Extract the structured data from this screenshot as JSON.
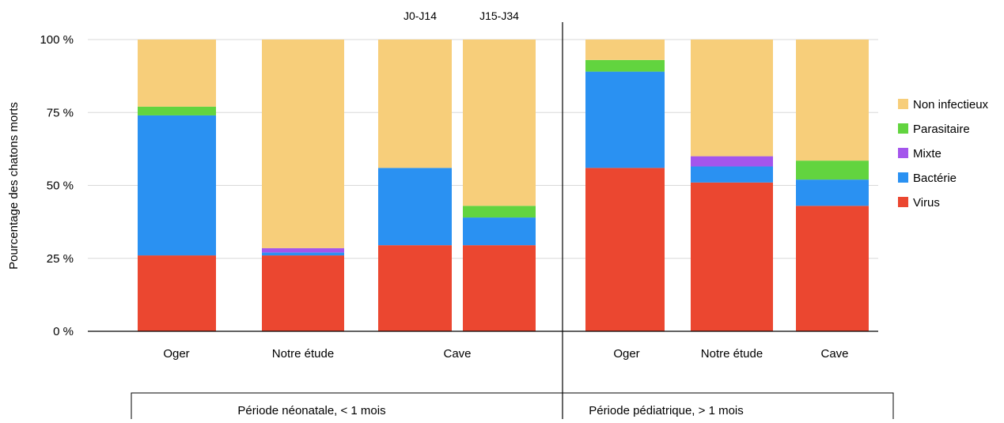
{
  "chart_data": {
    "type": "bar",
    "stacked": true,
    "ylabel": "Pourcentage des chatons morts",
    "ylim": [
      0,
      100
    ],
    "yticks": [
      {
        "value": 0,
        "label": "0 %"
      },
      {
        "value": 25,
        "label": "25 %"
      },
      {
        "value": 50,
        "label": "50 %"
      },
      {
        "value": 75,
        "label": "75 %"
      },
      {
        "value": 100,
        "label": "100 %"
      }
    ],
    "grid": true,
    "legend_position": "right",
    "groups": [
      {
        "label": "Période néonatale, < 1 mois"
      },
      {
        "label": "Période pédiatrique, > 1 mois"
      }
    ],
    "category_labels": [
      "Oger",
      "Notre étude",
      "Cave",
      "Oger",
      "Notre étude",
      "Cave"
    ],
    "subcategory_labels": [
      "J0-J14",
      "J15-J34"
    ],
    "bars": [
      {
        "category": "Oger",
        "group": "Période néonatale, < 1 mois",
        "values": {
          "Virus": 26,
          "Bactérie": 48,
          "Mixte": 0,
          "Parasitaire": 3,
          "Non infectieux": 23
        }
      },
      {
        "category": "Notre étude",
        "group": "Période néonatale, < 1 mois",
        "values": {
          "Virus": 26,
          "Bactérie": 1,
          "Mixte": 1.5,
          "Parasitaire": 0,
          "Non infectieux": 71.5
        }
      },
      {
        "category": "Cave",
        "subcategory": "J0-J14",
        "group": "Période néonatale, < 1 mois",
        "values": {
          "Virus": 29.5,
          "Bactérie": 26.5,
          "Mixte": 0,
          "Parasitaire": 0,
          "Non infectieux": 44
        }
      },
      {
        "category": "Cave",
        "subcategory": "J15-J34",
        "group": "Période néonatale, < 1 mois",
        "values": {
          "Virus": 29.5,
          "Bactérie": 9.5,
          "Mixte": 0,
          "Parasitaire": 4,
          "Non infectieux": 57
        }
      },
      {
        "category": "Oger",
        "group": "Période pédiatrique, > 1 mois",
        "values": {
          "Virus": 56,
          "Bactérie": 33,
          "Mixte": 0,
          "Parasitaire": 4,
          "Non infectieux": 7
        }
      },
      {
        "category": "Notre étude",
        "group": "Période pédiatrique, > 1 mois",
        "values": {
          "Virus": 51,
          "Bactérie": 5.5,
          "Mixte": 3.5,
          "Parasitaire": 0,
          "Non infectieux": 40
        }
      },
      {
        "category": "Cave",
        "group": "Période pédiatrique, > 1 mois",
        "values": {
          "Virus": 43,
          "Bactérie": 9,
          "Mixte": 0,
          "Parasitaire": 6.5,
          "Non infectieux": 41.5
        }
      }
    ],
    "series": [
      {
        "name": "Virus",
        "color": "#EB4730"
      },
      {
        "name": "Bactérie",
        "color": "#2A91F2"
      },
      {
        "name": "Mixte",
        "color": "#A455EC"
      },
      {
        "name": "Parasitaire",
        "color": "#62D43F"
      },
      {
        "name": "Non infectieux",
        "color": "#F7CE7A"
      }
    ],
    "legend_order": [
      "Non infectieux",
      "Parasitaire",
      "Mixte",
      "Bactérie",
      "Virus"
    ]
  }
}
